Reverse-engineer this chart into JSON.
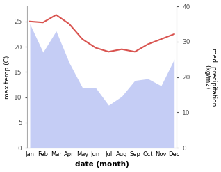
{
  "months": [
    "Jan",
    "Feb",
    "Mar",
    "Apr",
    "May",
    "Jun",
    "Jul",
    "Aug",
    "Sep",
    "Oct",
    "Nov",
    "Dec"
  ],
  "temp_max": [
    25.0,
    24.8,
    26.3,
    24.5,
    21.5,
    19.8,
    19.0,
    19.5,
    19.0,
    20.5,
    21.5,
    22.5
  ],
  "precip": [
    35.0,
    27.0,
    33.0,
    24.0,
    17.0,
    17.0,
    12.0,
    14.5,
    19.0,
    19.5,
    17.5,
    25.0
  ],
  "temp_color": "#d9534f",
  "precip_fill_color": "#c5cdf5",
  "ylabel_left": "max temp (C)",
  "ylabel_right": "med. precipitation\n(kg/m2)",
  "xlabel": "date (month)",
  "ylim_left": [
    0,
    28
  ],
  "ylim_right": [
    0,
    40
  ],
  "yticks_left": [
    0,
    5,
    10,
    15,
    20,
    25
  ],
  "yticks_right": [
    0,
    10,
    20,
    30,
    40
  ],
  "background_color": "#ffffff"
}
